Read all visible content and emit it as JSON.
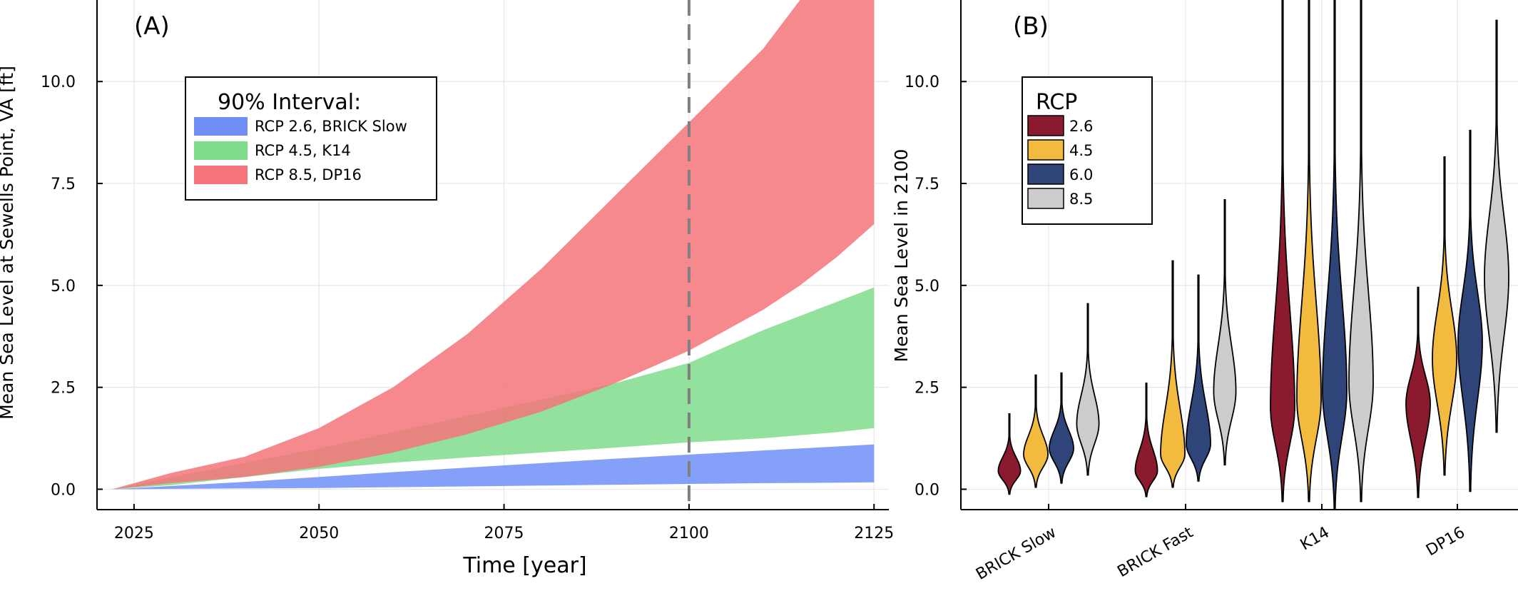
{
  "chart_data": [
    {
      "type": "area",
      "panel_label": "(A)",
      "xlabel": "Time [year]",
      "ylabel": "Mean Sea Level at Sewells Point, VA [ft]",
      "xlim": [
        2020,
        2127
      ],
      "ylim": [
        -0.5,
        12
      ],
      "xticks": [
        "2025",
        "2050",
        "2075",
        "2100",
        "2125"
      ],
      "yticks": [
        "0.0",
        "2.5",
        "5.0",
        "7.5",
        "10.0"
      ],
      "grid": true,
      "legend_title": "90% Interval:",
      "legend_position": "top-left",
      "vline": {
        "x": 2100,
        "style": "dashed",
        "color": "#808080"
      },
      "series": [
        {
          "name": "RCP 2.6, BRICK Slow",
          "color": "#6f8ff7",
          "x": [
            2022,
            2030,
            2040,
            2050,
            2060,
            2070,
            2080,
            2090,
            2100,
            2110,
            2120,
            2125
          ],
          "lower": [
            0,
            0.01,
            0.02,
            0.03,
            0.05,
            0.07,
            0.09,
            0.11,
            0.13,
            0.15,
            0.16,
            0.17
          ],
          "upper": [
            0,
            0.08,
            0.18,
            0.3,
            0.42,
            0.53,
            0.64,
            0.75,
            0.85,
            0.95,
            1.05,
            1.1
          ]
        },
        {
          "name": "RCP 4.5, K14",
          "color": "#7fdc8c",
          "x": [
            2022,
            2030,
            2040,
            2050,
            2060,
            2070,
            2080,
            2090,
            2100,
            2110,
            2120,
            2125
          ],
          "lower": [
            0,
            0.1,
            0.3,
            0.5,
            0.65,
            0.78,
            0.9,
            1.02,
            1.15,
            1.25,
            1.4,
            1.5
          ],
          "upper": [
            0,
            0.3,
            0.65,
            1.0,
            1.4,
            1.8,
            2.2,
            2.6,
            3.1,
            3.9,
            4.6,
            4.95
          ]
        },
        {
          "name": "RCP 8.5, DP16",
          "color": "#f4747a",
          "x": [
            2022,
            2030,
            2040,
            2050,
            2060,
            2070,
            2080,
            2090,
            2100,
            2110,
            2115,
            2120,
            2125
          ],
          "lower": [
            0,
            0.15,
            0.3,
            0.55,
            0.9,
            1.35,
            1.9,
            2.6,
            3.4,
            4.4,
            5.0,
            5.7,
            6.5
          ],
          "upper": [
            0,
            0.4,
            0.8,
            1.5,
            2.5,
            3.8,
            5.4,
            7.2,
            9.0,
            10.8,
            12,
            12,
            12
          ]
        }
      ]
    },
    {
      "type": "violin",
      "panel_label": "(B)",
      "ylabel": "Mean Sea Level in 2100",
      "ylim": [
        -0.5,
        12
      ],
      "yticks": [
        "0.0",
        "2.5",
        "5.0",
        "7.5",
        "10.0"
      ],
      "categories": [
        "BRICK Slow",
        "BRICK Fast",
        "K14",
        "DP16"
      ],
      "grid": true,
      "legend_title": "RCP",
      "legend_position": "top-left",
      "series": [
        {
          "name": "2.6",
          "color": "#8b1a2e"
        },
        {
          "name": "4.5",
          "color": "#f2bb3f"
        },
        {
          "name": "6.0",
          "color": "#2f4478"
        },
        {
          "name": "8.5",
          "color": "#cccccc"
        }
      ],
      "violins": [
        {
          "category": "BRICK Slow",
          "rcp": "2.6",
          "min": -0.12,
          "max": 1.85,
          "mode": 0.45,
          "width": 0.55
        },
        {
          "category": "BRICK Slow",
          "rcp": "4.5",
          "min": 0.05,
          "max": 2.8,
          "mode": 0.85,
          "width": 0.6
        },
        {
          "category": "BRICK Slow",
          "rcp": "6.0",
          "min": 0.15,
          "max": 2.85,
          "mode": 1.0,
          "width": 0.6
        },
        {
          "category": "BRICK Slow",
          "rcp": "8.5",
          "min": 0.35,
          "max": 4.55,
          "mode": 1.6,
          "width": 0.55
        },
        {
          "category": "BRICK Fast",
          "rcp": "2.6",
          "min": -0.18,
          "max": 2.6,
          "mode": 0.45,
          "width": 0.55
        },
        {
          "category": "BRICK Fast",
          "rcp": "4.5",
          "min": 0.05,
          "max": 5.6,
          "mode": 0.85,
          "width": 0.6
        },
        {
          "category": "BRICK Fast",
          "rcp": "6.0",
          "min": 0.2,
          "max": 5.25,
          "mode": 1.1,
          "width": 0.6
        },
        {
          "category": "BRICK Fast",
          "rcp": "8.5",
          "min": 0.6,
          "max": 7.1,
          "mode": 2.4,
          "width": 0.55
        },
        {
          "category": "K14",
          "rcp": "2.6",
          "min": -0.3,
          "max": 12,
          "mode": 2.0,
          "width": 0.6
        },
        {
          "category": "K14",
          "rcp": "4.5",
          "min": -0.3,
          "max": 12,
          "mode": 2.2,
          "width": 0.6
        },
        {
          "category": "K14",
          "rcp": "6.0",
          "min": -0.5,
          "max": 12,
          "mode": 2.4,
          "width": 0.6
        },
        {
          "category": "K14",
          "rcp": "8.5",
          "min": -0.3,
          "max": 12,
          "mode": 2.6,
          "width": 0.6
        },
        {
          "category": "DP16",
          "rcp": "2.6",
          "min": -0.2,
          "max": 4.95,
          "mode": 2.1,
          "width": 0.6
        },
        {
          "category": "DP16",
          "rcp": "4.5",
          "min": 0.35,
          "max": 8.15,
          "mode": 3.2,
          "width": 0.6
        },
        {
          "category": "DP16",
          "rcp": "6.0",
          "min": -0.05,
          "max": 8.8,
          "mode": 3.6,
          "width": 0.6
        },
        {
          "category": "DP16",
          "rcp": "8.5",
          "min": 1.4,
          "max": 11.5,
          "mode": 5.2,
          "width": 0.6
        }
      ]
    }
  ]
}
